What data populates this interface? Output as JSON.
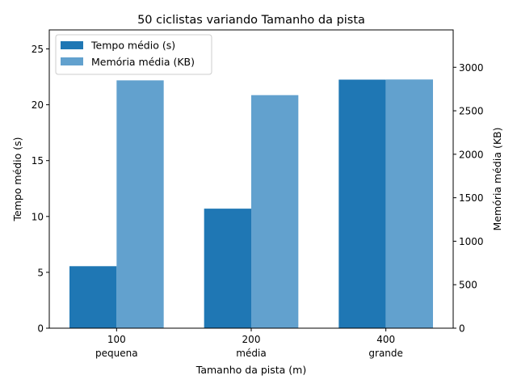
{
  "chart_data": {
    "type": "bar",
    "title": "50 ciclistas variando Tamanho da pista",
    "xlabel": "Tamanho da pista (m)",
    "ylabel": "Tempo médio (s)",
    "y2label": "Memória média (KB)",
    "categories": [
      {
        "line1": "100",
        "line2": "pequena"
      },
      {
        "line1": "200",
        "line2": "média"
      },
      {
        "line1": "400",
        "line2": "grande"
      }
    ],
    "series": [
      {
        "name": "Tempo médio (s)",
        "axis": "left",
        "color": "#1f77b4",
        "values": [
          5.55,
          10.7,
          22.25
        ]
      },
      {
        "name": "Memória média (KB)",
        "axis": "right",
        "color": "#62a1ce",
        "values": [
          2850,
          2680,
          2860
        ]
      }
    ],
    "ylim": [
      0,
      26.7
    ],
    "y2lim": [
      0,
      3430
    ],
    "yticks": [
      0,
      5,
      10,
      15,
      20,
      25
    ],
    "y2ticks": [
      0,
      500,
      1000,
      1500,
      2000,
      2500,
      3000
    ],
    "grid": false,
    "legend_position": "top-left"
  }
}
